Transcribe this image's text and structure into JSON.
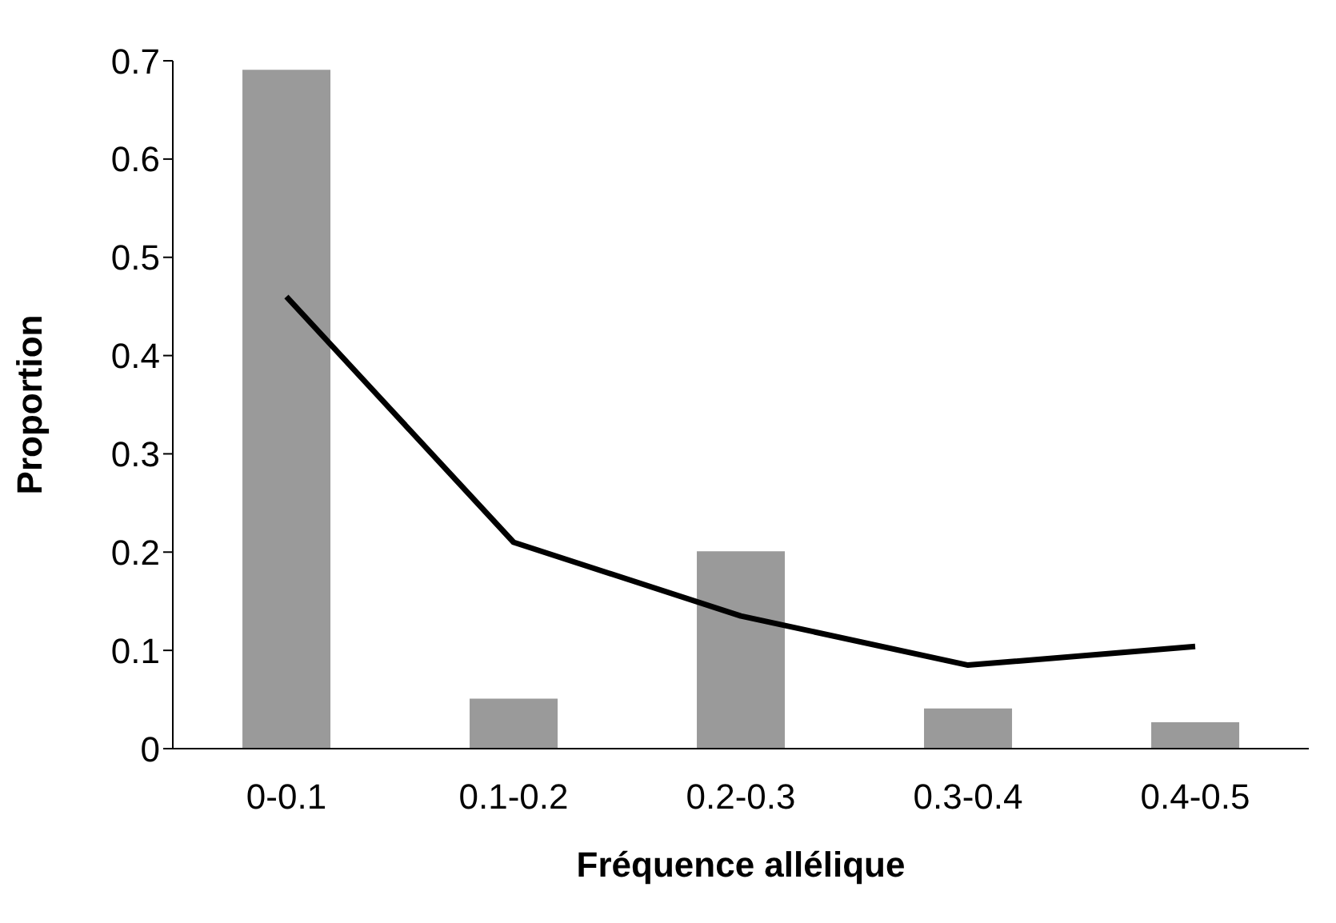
{
  "chart_data": {
    "type": "bar",
    "xlabel": "Fréquence allélique",
    "ylabel": "Proportion",
    "categories": [
      "0-0.1",
      "0.1-0.2",
      "0.2-0.3",
      "0.3-0.4",
      "0.4-0.5"
    ],
    "series": [
      {
        "color": "#9a9a9a",
        "values": [
          0.69,
          0.05,
          0.2,
          0.04,
          0.026
        ]
      },
      {
        "type": "line",
        "color": "#000000",
        "values": [
          0.46,
          0.21,
          0.135,
          0.085,
          0.104
        ]
      }
    ],
    "ylim": [
      0,
      0.7
    ],
    "yticks": [
      0,
      0.1,
      0.2,
      0.3,
      0.4,
      0.5,
      0.6,
      0.7
    ],
    "grid": false,
    "legend": false,
    "marker": "none",
    "line_style": "solid"
  }
}
